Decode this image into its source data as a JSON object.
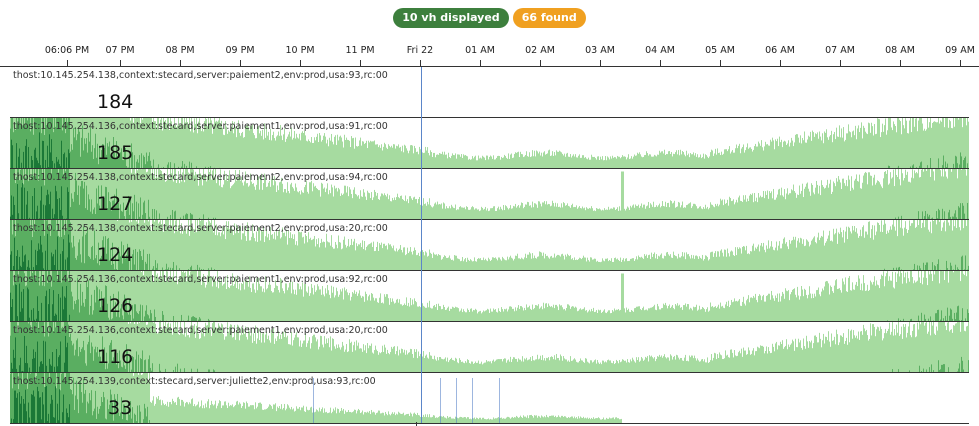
{
  "badges": {
    "displayed": "10 vh displayed",
    "found": "66 found",
    "displayed_color": "#3d7f3d",
    "found_color": "#f0a020"
  },
  "axis": {
    "ticks": [
      "06:06 PM",
      "07 PM",
      "08 PM",
      "09 PM",
      "10 PM",
      "11 PM",
      "Fri 22",
      "01 AM",
      "02 AM",
      "03 AM",
      "04 AM",
      "05 AM",
      "06 AM",
      "07 AM",
      "08 AM",
      "09 AM"
    ]
  },
  "colors": {
    "bar_light": "#a6dba0",
    "bar_mid": "#5aae61",
    "bar_dark": "#1b7837",
    "cursor": "#5b86c9"
  },
  "rows": [
    {
      "label": "thost:10.145.254.138,context:stecard,server:paiement2,env:prod,usa:93,rc:00",
      "value": "184"
    },
    {
      "label": "thost:10.145.254.136,context:stecard,server:paiement1,env:prod,usa:91,rc:00",
      "value": "185"
    },
    {
      "label": "thost:10.145.254.138,context:stecard,server:paiement2,env:prod,usa:94,rc:00",
      "value": "127"
    },
    {
      "label": "thost:10.145.254.138,context:stecard,server:paiement2,env:prod,usa:20,rc:00",
      "value": "124"
    },
    {
      "label": "thost:10.145.254.136,context:stecard,server:paiement1,env:prod,usa:92,rc:00",
      "value": "126"
    },
    {
      "label": "thost:10.145.254.136,context:stecard,server:paiement1,env:prod,usa:20,rc:00",
      "value": "116"
    },
    {
      "label": "thost:10.145.254.139,context:stecard,server:juliette2,env:prod,usa:93,rc:00",
      "value": "33"
    }
  ]
}
